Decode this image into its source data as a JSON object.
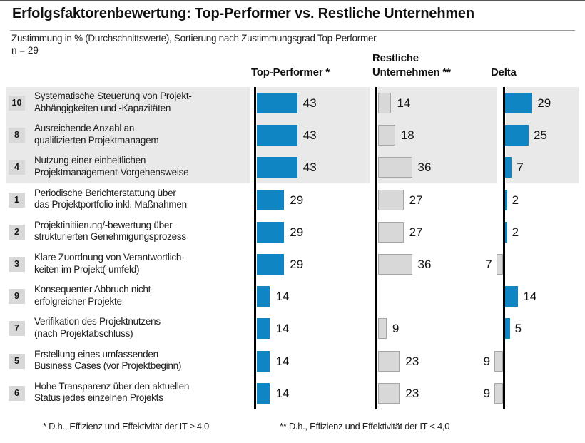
{
  "title": "Erfolgsfaktorenbewertung: Top-Performer vs. Restliche Unternehmen",
  "subtitle": "Zustimmung in % (Durchschnittswerte), Sortierung nach Zustimmungsgrad Top-Performer",
  "sample_size": "n = 29",
  "headers": {
    "top_performer": "Top-Performer *",
    "restliche_line1": "Restliche",
    "restliche_line2": "Unternehmen **",
    "delta": "Delta"
  },
  "footnotes": {
    "star": "* D.h., Effizienz und Effektivität der IT ≥ 4,0",
    "double_star": "** D.h., Effizienz und Effektivität der IT < 4,0"
  },
  "colors": {
    "bar_blue": "#0f86c3",
    "bar_gray": "#d8d8d8",
    "bar_gray_border": "#a6a6a6",
    "stripe": "#e9e9e9",
    "badge_bg": "#d8d8d8",
    "axis": "#000000"
  },
  "chart_data": {
    "type": "bar",
    "orientation": "horizontal",
    "unit": "%",
    "title": "Erfolgsfaktorenbewertung: Top-Performer vs. Restliche Unternehmen",
    "xlim": [
      0,
      50
    ],
    "highlighted_top_rows": 3,
    "legend_position": "column-headers",
    "grid": false,
    "categories": [
      {
        "rank": "10",
        "label_lines": [
          "Systematische Steuerung von Projekt-",
          "Abhängigkeiten und -Kapazitäten"
        ]
      },
      {
        "rank": "8",
        "label_lines": [
          "Ausreichende Anzahl an",
          "qualifizierten Projektmanagem"
        ]
      },
      {
        "rank": "4",
        "label_lines": [
          "Nutzung einer einheitlichen",
          "Projektmanagement-Vorgehensweise"
        ]
      },
      {
        "rank": "1",
        "label_lines": [
          "Periodische Berichterstattung über",
          "das Projektportfolio inkl. Maßnahmen"
        ]
      },
      {
        "rank": "2",
        "label_lines": [
          "Projektinitiierung/-bewertung über",
          "strukturierten Genehmigungsprozess"
        ]
      },
      {
        "rank": "3",
        "label_lines": [
          "Klare Zuordnung von Verantwortlich-",
          "keiten im Projekt(-umfeld)"
        ]
      },
      {
        "rank": "9",
        "label_lines": [
          "Konsequenter Abbruch nicht-",
          "erfolgreicher Projekte"
        ]
      },
      {
        "rank": "7",
        "label_lines": [
          "Verifikation des Projektnutzens",
          "(nach Projektabschluss)"
        ]
      },
      {
        "rank": "5",
        "label_lines": [
          "Erstellung eines umfassenden",
          "Business Cases (vor Projektbeginn)"
        ]
      },
      {
        "rank": "6",
        "label_lines": [
          "Hohe Transparenz über den aktuellen",
          "Status jedes einzelnen Projekts"
        ]
      }
    ],
    "series": [
      {
        "name": "Top-Performer",
        "values": [
          43,
          43,
          43,
          29,
          29,
          29,
          14,
          14,
          14,
          14
        ]
      },
      {
        "name": "Restliche Unternehmen",
        "values": [
          14,
          18,
          36,
          27,
          27,
          36,
          null,
          9,
          23,
          23
        ]
      },
      {
        "name": "Delta",
        "values": [
          29,
          25,
          7,
          2,
          2,
          -7,
          14,
          5,
          -9,
          -9
        ]
      }
    ]
  }
}
